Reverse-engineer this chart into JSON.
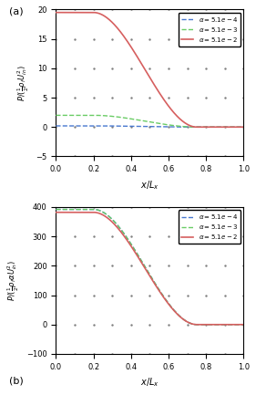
{
  "title_a": "(a)",
  "title_b": "(b)",
  "xlabel": "x/L_x",
  "ylabel_a": "P/(\\frac{1}{2}\\rho_f U_{in}^2)",
  "ylabel_b": "P/(\\frac{1}{2}\\rho_f \\alpha U_{in}^2)",
  "ylim_a": [
    -5,
    20
  ],
  "ylim_b": [
    -100,
    400
  ],
  "xlim": [
    0,
    1
  ],
  "legend_labels": [
    "\\alpha = 5.1e-4",
    "\\alpha = 5.1e-3",
    "\\alpha = 5.1e-2"
  ],
  "colors": [
    "#4878cf",
    "#6acc65",
    "#d65f5f"
  ],
  "background_color": "#ffffff",
  "alpha1": 0.00051,
  "alpha2": 0.0051,
  "alpha3": 0.051
}
